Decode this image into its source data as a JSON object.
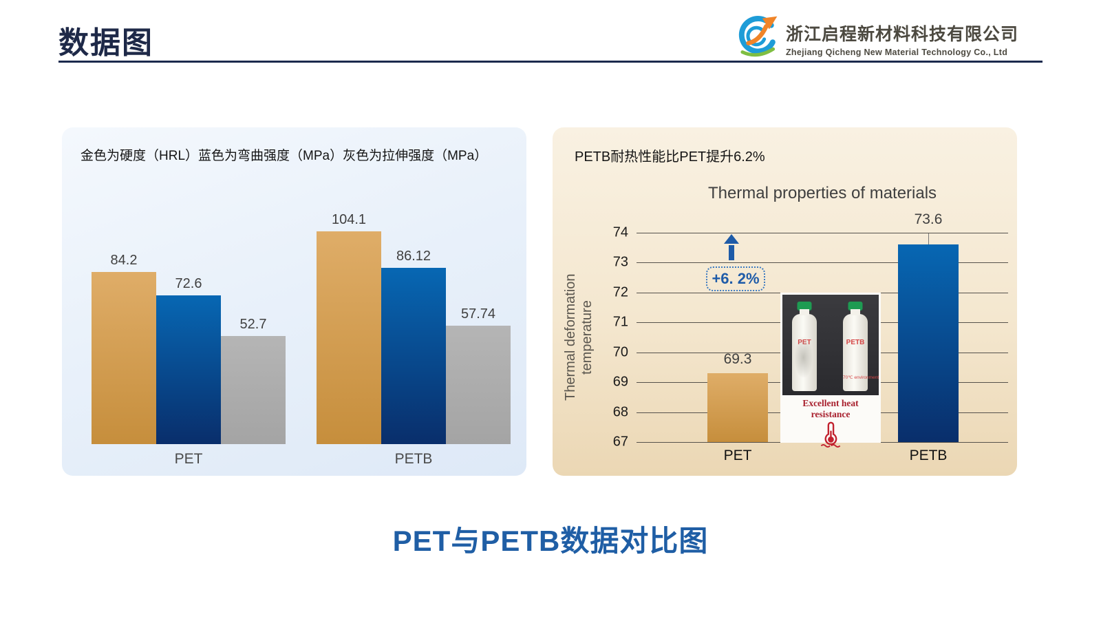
{
  "page": {
    "title": "数据图",
    "bottom_caption": "PET与PETB数据对比图"
  },
  "logo": {
    "company_cn": "浙江启程新材料科技有限公司",
    "company_en": "Zhejiang Qicheng New Material Technology Co., Ltd"
  },
  "left_panel": {
    "legend": "金色为硬度（HRL）蓝色为弯曲强度（MPa）灰色为拉伸强度（MPa）"
  },
  "right_panel": {
    "header": "PETB耐热性能比PET提升6.2%",
    "y_axis_label": "Thermal deformation\ntemperature",
    "inset": {
      "bottle_left_label": "PET",
      "bottle_right_label": "PETB",
      "bottle_note": "70℃ environment",
      "caption": "Excellent heat resistance"
    }
  },
  "colors": {
    "title_navy": "#1E2948",
    "caption_blue": "#1F5EA5",
    "annotation_blue": "#1E5BA8",
    "gridline": "#55514B",
    "inset_caption_red": "#A8202E",
    "logo_blue": "#1E9CD7",
    "logo_orange": "#F08428",
    "logo_green": "#7FBE42",
    "gold": {
      "top": "#DFAD68",
      "bottom": "#C68E3C"
    },
    "blue": {
      "top": "#0767B3",
      "bottom": "#092E6B"
    },
    "gray": {
      "top": "#B5B5B5",
      "bottom": "#A4A4A4"
    }
  },
  "chart_data": [
    {
      "type": "bar",
      "title": "",
      "categories": [
        "PET",
        "PETB"
      ],
      "series": [
        {
          "name": "硬度（HRL）",
          "color": "gold",
          "values": [
            84.2,
            104.1
          ]
        },
        {
          "name": "弯曲强度（MPa）",
          "color": "blue",
          "values": [
            72.6,
            86.12
          ]
        },
        {
          "name": "拉伸强度（MPa）",
          "color": "gray",
          "values": [
            52.7,
            57.74
          ]
        }
      ],
      "ylim": [
        0,
        111
      ],
      "grid": false,
      "value_labels": true,
      "legend_position": "top-text"
    },
    {
      "type": "bar",
      "title": "Thermal properties of materials",
      "ylabel": "Thermal deformation temperature",
      "categories": [
        "PET",
        "PETB"
      ],
      "values": [
        69.3,
        73.6
      ],
      "bar_colors": [
        "gold",
        "blue"
      ],
      "ylim": [
        67,
        74
      ],
      "yticks": [
        74,
        73,
        72,
        71,
        70,
        69,
        68,
        67
      ],
      "grid": true,
      "annotation": {
        "text": "+6. 2%",
        "arrow": true
      }
    }
  ]
}
